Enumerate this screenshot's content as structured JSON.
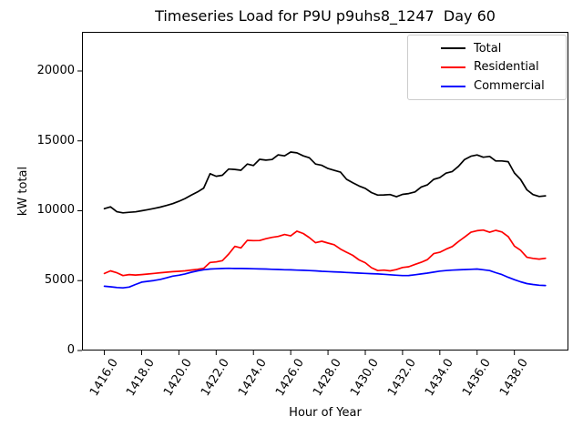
{
  "title": "Timeseries Load for P9U p9uhs8_1247  Day 60",
  "x_axis_label": "Hour of Year",
  "y_axis_label": "kW total",
  "legend": {
    "entries": [
      {
        "label": "Total",
        "color": "#000000"
      },
      {
        "label": "Residential",
        "color": "#ff0000"
      },
      {
        "label": "Commercial",
        "color": "#0000ff"
      }
    ],
    "position": "upper right"
  },
  "colors": {
    "total": "#000000",
    "residential": "#ff0000",
    "commercial": "#0000ff",
    "axis": "#000000",
    "legend_border": "#cccccc",
    "background": "#ffffff"
  },
  "chart_data": {
    "type": "line",
    "title": "Timeseries Load for P9U p9uhs8_1247  Day 60",
    "xlabel": "Hour of Year",
    "ylabel": "kW total",
    "grid": false,
    "legend_position": "upper right",
    "xlim": [
      1414.8,
      1440.9
    ],
    "ylim": [
      0,
      22800
    ],
    "xtick_labels": [
      "1416.0",
      "1418.0",
      "1420.0",
      "1422.0",
      "1424.0",
      "1426.0",
      "1428.0",
      "1430.0",
      "1432.0",
      "1434.0",
      "1436.0",
      "1438.0"
    ],
    "xtick_rotation_deg": 58,
    "ytick_labels": [
      "0",
      "5000",
      "10000",
      "15000",
      "20000"
    ],
    "x": [
      1416.0,
      1416.33,
      1416.67,
      1417.0,
      1417.33,
      1417.67,
      1418.0,
      1418.33,
      1418.67,
      1419.0,
      1419.33,
      1419.67,
      1420.0,
      1420.33,
      1420.67,
      1421.0,
      1421.33,
      1421.67,
      1422.0,
      1422.33,
      1422.67,
      1423.0,
      1423.33,
      1423.67,
      1424.0,
      1424.33,
      1424.67,
      1425.0,
      1425.33,
      1425.67,
      1426.0,
      1426.33,
      1426.67,
      1427.0,
      1427.33,
      1427.67,
      1428.0,
      1428.33,
      1428.67,
      1429.0,
      1429.33,
      1429.67,
      1430.0,
      1430.33,
      1430.67,
      1431.0,
      1431.33,
      1431.67,
      1432.0,
      1432.33,
      1432.67,
      1433.0,
      1433.33,
      1433.67,
      1434.0,
      1434.33,
      1434.67,
      1435.0,
      1435.33,
      1435.67,
      1436.0,
      1436.33,
      1436.67,
      1437.0,
      1437.33,
      1437.67,
      1438.0,
      1438.33,
      1438.67,
      1439.0,
      1439.33,
      1439.67
    ],
    "series": [
      {
        "name": "Total",
        "color": "#000000",
        "values": [
          10150,
          10280,
          9930,
          9850,
          9890,
          9920,
          10000,
          10080,
          10170,
          10260,
          10380,
          10510,
          10680,
          10870,
          11120,
          11350,
          11620,
          12650,
          12470,
          12540,
          12980,
          12960,
          12900,
          13340,
          13240,
          13680,
          13620,
          13670,
          14000,
          13930,
          14200,
          14140,
          13930,
          13790,
          13340,
          13250,
          13020,
          12890,
          12760,
          12250,
          12000,
          11770,
          11600,
          11300,
          11120,
          11130,
          11160,
          11000,
          11170,
          11230,
          11350,
          11700,
          11850,
          12250,
          12370,
          12690,
          12810,
          13180,
          13670,
          13900,
          13990,
          13830,
          13890,
          13560,
          13560,
          13510,
          12700,
          12250,
          11500,
          11160,
          11020,
          11070
        ]
      },
      {
        "name": "Residential",
        "color": "#ff0000",
        "values": [
          5510,
          5700,
          5560,
          5360,
          5430,
          5400,
          5430,
          5470,
          5520,
          5560,
          5600,
          5640,
          5670,
          5700,
          5760,
          5810,
          5880,
          6300,
          6340,
          6430,
          6900,
          7450,
          7340,
          7880,
          7860,
          7870,
          8000,
          8100,
          8160,
          8300,
          8200,
          8540,
          8370,
          8080,
          7710,
          7820,
          7690,
          7570,
          7260,
          7030,
          6810,
          6480,
          6280,
          5930,
          5720,
          5750,
          5700,
          5790,
          5940,
          5990,
          6160,
          6310,
          6500,
          6930,
          7030,
          7250,
          7440,
          7800,
          8120,
          8460,
          8570,
          8620,
          8460,
          8600,
          8480,
          8150,
          7470,
          7180,
          6670,
          6590,
          6540,
          6600
        ]
      },
      {
        "name": "Commercial",
        "color": "#0000ff",
        "values": [
          4600,
          4560,
          4510,
          4480,
          4540,
          4720,
          4890,
          4950,
          5010,
          5090,
          5200,
          5320,
          5390,
          5480,
          5600,
          5700,
          5780,
          5830,
          5850,
          5870,
          5880,
          5870,
          5870,
          5860,
          5850,
          5840,
          5830,
          5810,
          5800,
          5780,
          5770,
          5750,
          5740,
          5720,
          5700,
          5670,
          5650,
          5630,
          5610,
          5580,
          5560,
          5540,
          5520,
          5500,
          5480,
          5450,
          5420,
          5390,
          5360,
          5370,
          5420,
          5480,
          5540,
          5610,
          5680,
          5720,
          5750,
          5770,
          5790,
          5810,
          5830,
          5780,
          5720,
          5570,
          5430,
          5240,
          5070,
          4920,
          4790,
          4720,
          4670,
          4650
        ]
      }
    ]
  }
}
